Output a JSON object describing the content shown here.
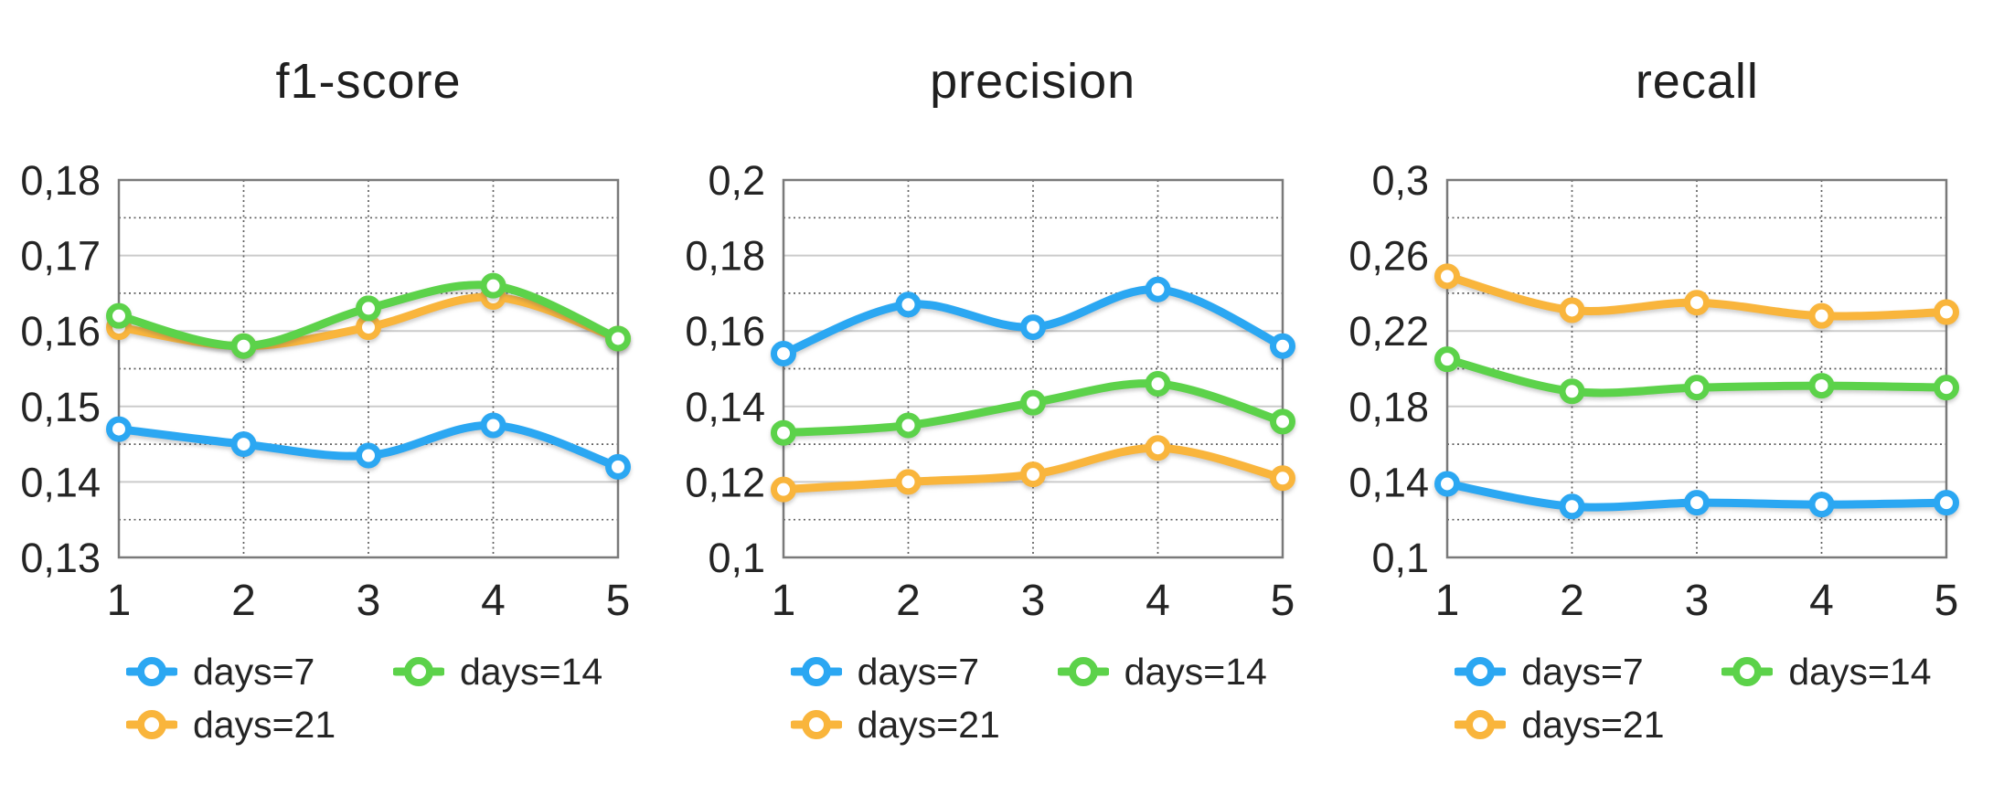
{
  "palette": {
    "days7_blue": "#2BA7F2",
    "days14_green": "#5CD24A",
    "days21_orange": "#F9B53C",
    "grid_major": "#cbcbcb",
    "grid_dotted": "#5f5f5f",
    "plot_border": "#7a7a7a",
    "text": "#242424"
  },
  "legend": {
    "labels": [
      "days=7",
      "days=14",
      "days=21"
    ]
  },
  "chart_data": [
    {
      "type": "line",
      "title": "f1-score",
      "x": [
        "1",
        "2",
        "3",
        "4",
        "5"
      ],
      "ylim": [
        0.13,
        0.18
      ],
      "y_tick_values": [
        0.13,
        0.14,
        0.15,
        0.16,
        0.17,
        0.18
      ],
      "y_tick_labels": [
        "0,13",
        "0,14",
        "0,15",
        "0,16",
        "0,17",
        "0,18"
      ],
      "grid": {
        "minor_dotted_between_majors": true,
        "vertical_dotted_at_x": [
          "2",
          "3",
          "4"
        ],
        "legend_position": "bottom"
      },
      "series": [
        {
          "name": "days=7",
          "color": "#2BA7F2",
          "values": [
            0.147,
            0.145,
            0.1435,
            0.1475,
            0.142
          ]
        },
        {
          "name": "days=14",
          "color": "#5CD24A",
          "values": [
            0.162,
            0.158,
            0.163,
            0.166,
            0.159
          ]
        },
        {
          "name": "days=21",
          "color": "#F9B53C",
          "values": [
            0.1605,
            0.158,
            0.1605,
            0.1645,
            0.159
          ]
        }
      ]
    },
    {
      "type": "line",
      "title": "precision",
      "x": [
        "1",
        "2",
        "3",
        "4",
        "5"
      ],
      "ylim": [
        0.1,
        0.2
      ],
      "y_tick_values": [
        0.1,
        0.12,
        0.14,
        0.16,
        0.18,
        0.2
      ],
      "y_tick_labels": [
        "0,1",
        "0,12",
        "0,14",
        "0,16",
        "0,18",
        "0,2"
      ],
      "grid": {
        "minor_dotted_between_majors": true,
        "vertical_dotted_at_x": [
          "2",
          "3",
          "4"
        ],
        "legend_position": "bottom"
      },
      "series": [
        {
          "name": "days=7",
          "color": "#2BA7F2",
          "values": [
            0.154,
            0.167,
            0.161,
            0.171,
            0.156
          ]
        },
        {
          "name": "days=14",
          "color": "#5CD24A",
          "values": [
            0.133,
            0.135,
            0.141,
            0.146,
            0.136
          ]
        },
        {
          "name": "days=21",
          "color": "#F9B53C",
          "values": [
            0.118,
            0.12,
            0.122,
            0.129,
            0.121
          ]
        }
      ]
    },
    {
      "type": "line",
      "title": "recall",
      "x": [
        "1",
        "2",
        "3",
        "4",
        "5"
      ],
      "ylim": [
        0.1,
        0.3
      ],
      "y_tick_values": [
        0.1,
        0.14,
        0.18,
        0.22,
        0.26,
        0.3
      ],
      "y_tick_labels": [
        "0,1",
        "0,14",
        "0,18",
        "0,22",
        "0,26",
        "0,3"
      ],
      "grid": {
        "minor_dotted_between_majors": true,
        "vertical_dotted_at_x": [
          "2",
          "3",
          "4"
        ],
        "legend_position": "bottom"
      },
      "series": [
        {
          "name": "days=7",
          "color": "#2BA7F2",
          "values": [
            0.139,
            0.127,
            0.129,
            0.128,
            0.129
          ]
        },
        {
          "name": "days=14",
          "color": "#5CD24A",
          "values": [
            0.205,
            0.188,
            0.19,
            0.191,
            0.19
          ]
        },
        {
          "name": "days=21",
          "color": "#F9B53C",
          "values": [
            0.249,
            0.231,
            0.235,
            0.228,
            0.23
          ]
        }
      ]
    }
  ]
}
